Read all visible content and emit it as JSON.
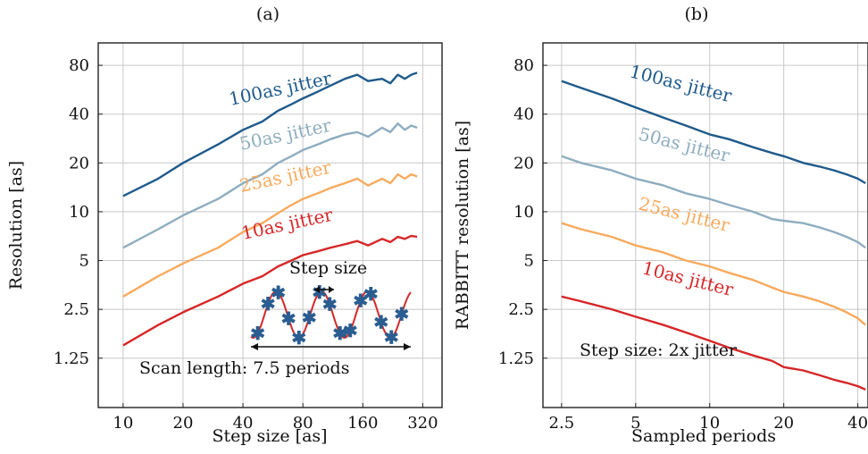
{
  "chart_data": [
    {
      "type": "line",
      "panel_label": "(a)",
      "xlabel": "Step size [as]",
      "ylabel": "Resolution [as]",
      "xscale": "log",
      "yscale": "log",
      "xlim": [
        7.5,
        400
      ],
      "ylim": [
        0.62,
        110
      ],
      "xticks": [
        10,
        20,
        40,
        80,
        160,
        320
      ],
      "xtick_labels": [
        "10",
        "20",
        "40",
        "80",
        "160",
        "320"
      ],
      "yticks": [
        1.25,
        2.5,
        5,
        10,
        20,
        40,
        80
      ],
      "ytick_labels": [
        "1.25",
        "2.5",
        "5",
        "10",
        "20",
        "40",
        "80"
      ],
      "grid": true,
      "series": [
        {
          "name": "100as jitter",
          "color": "#1f5a8b",
          "x": [
            10,
            15,
            20,
            30,
            40,
            50,
            60,
            70,
            80,
            95,
            110,
            130,
            150,
            170,
            200,
            220,
            240,
            260,
            280,
            300
          ],
          "y": [
            12.5,
            16,
            20,
            26,
            32,
            36,
            42,
            46,
            50,
            55,
            60,
            66,
            70,
            64,
            66,
            62,
            70,
            66,
            70,
            72
          ]
        },
        {
          "name": "50as jitter",
          "color": "#8eadbf",
          "x": [
            10,
            15,
            20,
            30,
            40,
            50,
            60,
            70,
            80,
            95,
            110,
            130,
            150,
            170,
            200,
            220,
            240,
            260,
            280,
            300
          ],
          "y": [
            6,
            7.8,
            9.5,
            12,
            15,
            17,
            20,
            22,
            24,
            26,
            28,
            30,
            31,
            29,
            33,
            31,
            35,
            32,
            34,
            33
          ]
        },
        {
          "name": "25as jitter",
          "color": "#f7aa5e",
          "x": [
            10,
            15,
            20,
            30,
            40,
            50,
            60,
            70,
            80,
            95,
            110,
            130,
            150,
            170,
            200,
            220,
            240,
            260,
            280,
            300
          ],
          "y": [
            3,
            4,
            4.8,
            6,
            7.5,
            8.5,
            9.8,
            11,
            12,
            13,
            14,
            15,
            16,
            14.5,
            16,
            15,
            17,
            16,
            17,
            16.5
          ]
        },
        {
          "name": "10as jitter",
          "color": "#d62728",
          "x": [
            10,
            15,
            20,
            30,
            40,
            50,
            60,
            70,
            80,
            95,
            110,
            130,
            150,
            170,
            200,
            220,
            240,
            260,
            280,
            300
          ],
          "y": [
            1.5,
            2,
            2.4,
            3,
            3.6,
            4,
            4.6,
            5,
            5.4,
            5.7,
            6,
            6.3,
            6.6,
            6.2,
            6.8,
            6.5,
            7,
            6.8,
            7.1,
            7
          ]
        }
      ],
      "inset": {
        "step_label": "Step size",
        "scan_label": "Scan length: 7.5 periods"
      }
    },
    {
      "type": "line",
      "panel_label": "(b)",
      "xlabel": "Sampled periods",
      "ylabel": "RABBITT resolution [as]",
      "xscale": "log",
      "yscale": "log",
      "xlim": [
        2.1,
        44
      ],
      "ylim": [
        0.62,
        110
      ],
      "xticks": [
        2.5,
        5,
        10,
        20,
        40
      ],
      "xtick_labels": [
        "2.5",
        "5",
        "10",
        "20",
        "40"
      ],
      "yticks": [
        1.25,
        2.5,
        5,
        10,
        20,
        40,
        80
      ],
      "ytick_labels": [
        "1.25",
        "2.5",
        "5",
        "10",
        "20",
        "40",
        "80"
      ],
      "grid": true,
      "series": [
        {
          "name": "100as jitter",
          "color": "#1f5a8b",
          "x": [
            2.5,
            3,
            4,
            5,
            6.5,
            8,
            10,
            12,
            15,
            18,
            20,
            24,
            28,
            32,
            36,
            40,
            43
          ],
          "y": [
            64,
            58,
            50,
            44,
            38,
            34,
            30,
            28,
            25,
            23,
            22,
            20,
            19,
            18,
            17,
            16,
            15
          ]
        },
        {
          "name": "50as jitter",
          "color": "#8eadbf",
          "x": [
            2.5,
            3,
            4,
            5,
            6.5,
            8,
            10,
            12,
            15,
            18,
            20,
            24,
            28,
            32,
            36,
            40,
            43
          ],
          "y": [
            22,
            20,
            18,
            16,
            14.5,
            13,
            12,
            11,
            10,
            9,
            8.8,
            8.5,
            8,
            7.5,
            7,
            6.5,
            6
          ]
        },
        {
          "name": "25as jitter",
          "color": "#f7aa5e",
          "x": [
            2.5,
            3,
            4,
            5,
            6.5,
            8,
            10,
            12,
            15,
            18,
            20,
            24,
            28,
            32,
            36,
            40,
            43
          ],
          "y": [
            8.5,
            7.8,
            7,
            6.2,
            5.6,
            5,
            4.6,
            4.2,
            3.8,
            3.4,
            3.2,
            3,
            2.8,
            2.6,
            2.4,
            2.2,
            2
          ]
        },
        {
          "name": "10as jitter",
          "color": "#d62728",
          "x": [
            2.5,
            3,
            4,
            5,
            6.5,
            8,
            10,
            12,
            15,
            18,
            20,
            24,
            28,
            32,
            36,
            40,
            43
          ],
          "y": [
            3,
            2.8,
            2.5,
            2.25,
            2,
            1.8,
            1.6,
            1.45,
            1.3,
            1.2,
            1.1,
            1.05,
            0.98,
            0.92,
            0.88,
            0.84,
            0.8
          ]
        }
      ],
      "note": "Step size: 2x jitter"
    }
  ]
}
